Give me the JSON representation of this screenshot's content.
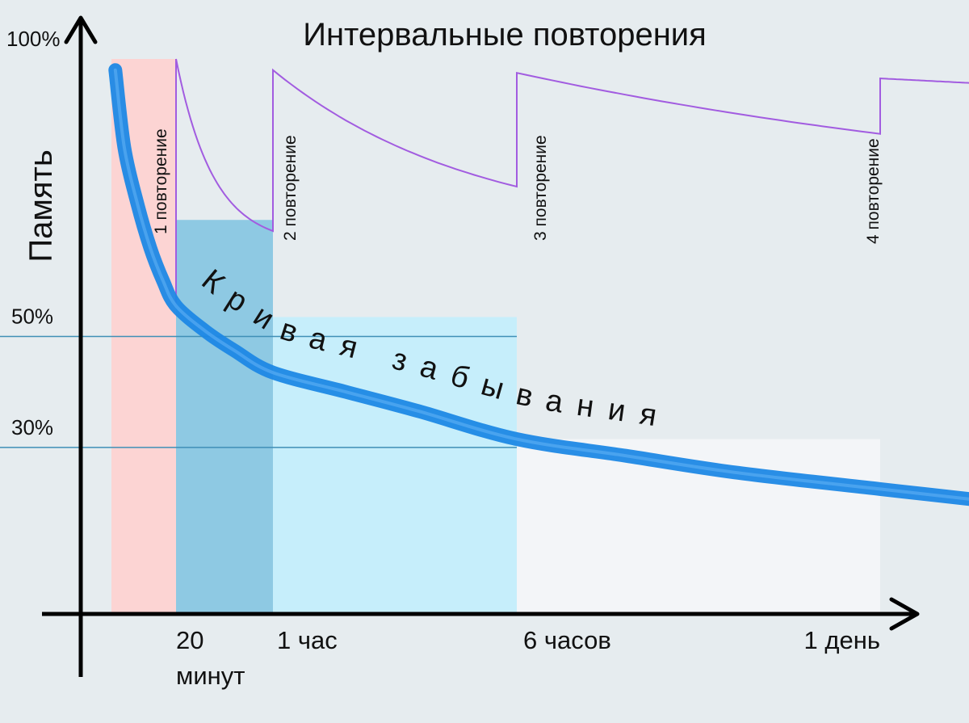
{
  "chart_data": {
    "type": "line",
    "title": "Интервальные повторения",
    "ylabel": "Память",
    "xlabel": "",
    "y_ticks": [
      {
        "label": "100%",
        "value": 100
      },
      {
        "label": "50%",
        "value": 50
      },
      {
        "label": "30%",
        "value": 30
      }
    ],
    "x_ticks": [
      {
        "label_lines": [
          "20",
          "минут"
        ],
        "t": 1
      },
      {
        "label_lines": [
          "1 час"
        ],
        "t": 2
      },
      {
        "label_lines": [
          "6 часов"
        ],
        "t": 3
      },
      {
        "label_lines": [
          "1 день"
        ],
        "t": 4
      }
    ],
    "forgetting_curve": {
      "label": "Кривая забывания",
      "color": "#1e88e5",
      "points": [
        [
          0.06,
          98
        ],
        [
          0.2,
          84
        ],
        [
          0.4,
          74
        ],
        [
          0.6,
          66
        ],
        [
          0.8,
          60
        ],
        [
          1.0,
          55.5
        ],
        [
          1.3,
          51
        ],
        [
          1.6,
          47.5
        ],
        [
          2.0,
          43.5
        ],
        [
          2.3,
          40
        ],
        [
          2.6,
          36.5
        ],
        [
          3.0,
          31.5
        ],
        [
          3.3,
          28.5
        ],
        [
          3.6,
          25.5
        ],
        [
          4.0,
          22.5
        ],
        [
          4.3,
          20.3
        ]
      ]
    },
    "repetitions": {
      "color": "#a25ce0",
      "labels": [
        "1 повторение",
        "2 повторение",
        "3 повторение",
        "4 повторение"
      ],
      "segments": [
        {
          "t_start": 1.0,
          "y_start": 100,
          "t_end": 2.0,
          "y_end": 69,
          "curvature": 2.6
        },
        {
          "t_start": 2.0,
          "y_start": 98,
          "t_end": 3.0,
          "y_end": 77,
          "curvature": 1.2
        },
        {
          "t_start": 3.0,
          "y_start": 97.5,
          "t_end": 4.0,
          "y_end": 86.5,
          "curvature": 0.55
        },
        {
          "t_start": 4.0,
          "y_start": 96.5,
          "t_end": 4.3,
          "y_end": 95.5,
          "curvature": 0
        }
      ]
    },
    "bands": [
      {
        "t_start": 0.0,
        "t_end": 1.0,
        "level": 100,
        "color": "#fcd4d3"
      },
      {
        "t_start": 1.0,
        "t_end": 2.0,
        "level": 71,
        "color": "#8ec9e3"
      },
      {
        "t_start": 2.0,
        "t_end": 3.0,
        "level": 53.5,
        "color": "#c6eefb"
      },
      {
        "t_start": 3.0,
        "t_end": 4.0,
        "level": 31.5,
        "color": "#f3f5f8"
      }
    ],
    "reference_lines": [
      50,
      30
    ],
    "grid": false,
    "legend": "none"
  }
}
